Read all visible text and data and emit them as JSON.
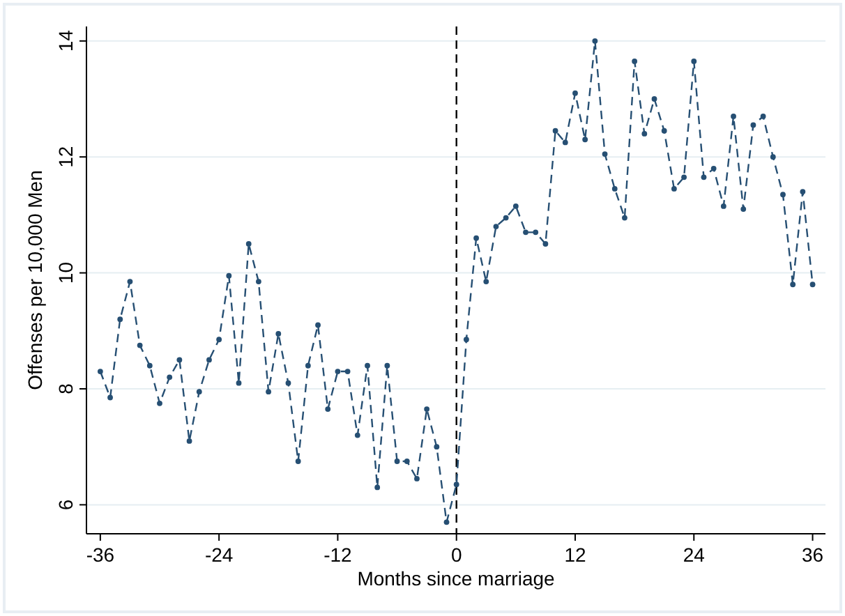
{
  "chart_data": {
    "type": "line",
    "xlabel": "Months since marriage",
    "ylabel": "Offenses per 10,000 Men",
    "x": [
      -36,
      -35,
      -34,
      -33,
      -32,
      -31,
      -30,
      -29,
      -28,
      -27,
      -26,
      -25,
      -24,
      -23,
      -22,
      -21,
      -20,
      -19,
      -18,
      -17,
      -16,
      -15,
      -14,
      -13,
      -12,
      -11,
      -10,
      -9,
      -8,
      -7,
      -6,
      -5,
      -4,
      -3,
      -2,
      -1,
      0,
      1,
      2,
      3,
      4,
      5,
      6,
      7,
      8,
      9,
      10,
      11,
      12,
      13,
      14,
      15,
      16,
      17,
      18,
      19,
      20,
      21,
      22,
      23,
      24,
      25,
      26,
      27,
      28,
      29,
      30,
      31,
      32,
      33,
      34,
      35,
      36
    ],
    "series": [
      {
        "color": "#264f73",
        "values": [
          8.3,
          7.85,
          9.2,
          9.85,
          8.75,
          8.4,
          7.75,
          8.2,
          8.5,
          7.1,
          7.95,
          8.5,
          8.85,
          9.95,
          8.1,
          10.5,
          9.85,
          7.95,
          8.95,
          8.1,
          6.75,
          8.4,
          9.1,
          7.65,
          8.3,
          8.3,
          7.2,
          8.4,
          6.3,
          8.4,
          6.75,
          6.75,
          6.45,
          7.65,
          7.0,
          5.7,
          6.35,
          8.85,
          10.6,
          9.85,
          10.8,
          10.95,
          11.15,
          10.7,
          10.7,
          10.5,
          12.45,
          12.25,
          13.1,
          12.3,
          14.0,
          12.05,
          11.45,
          10.95,
          13.65,
          12.4,
          13.0,
          12.45,
          11.45,
          11.65,
          13.65,
          11.65,
          11.8,
          11.15,
          12.7,
          11.1,
          12.55,
          12.7,
          12.0,
          11.35,
          9.8,
          11.4,
          9.8
        ]
      }
    ],
    "xlim": [
      -37.4,
      37.3
    ],
    "ylim": [
      5.5,
      14.25
    ],
    "xticks": [
      -36,
      -24,
      -12,
      0,
      12,
      24,
      36
    ],
    "yticks": [
      6,
      8,
      10,
      12,
      14
    ],
    "grid": "y",
    "marker": "circle",
    "line_style": "dashed",
    "ref_lines": [
      {
        "axis": "x",
        "value": 0,
        "color": "#000000",
        "line_style": "dashed"
      }
    ]
  }
}
